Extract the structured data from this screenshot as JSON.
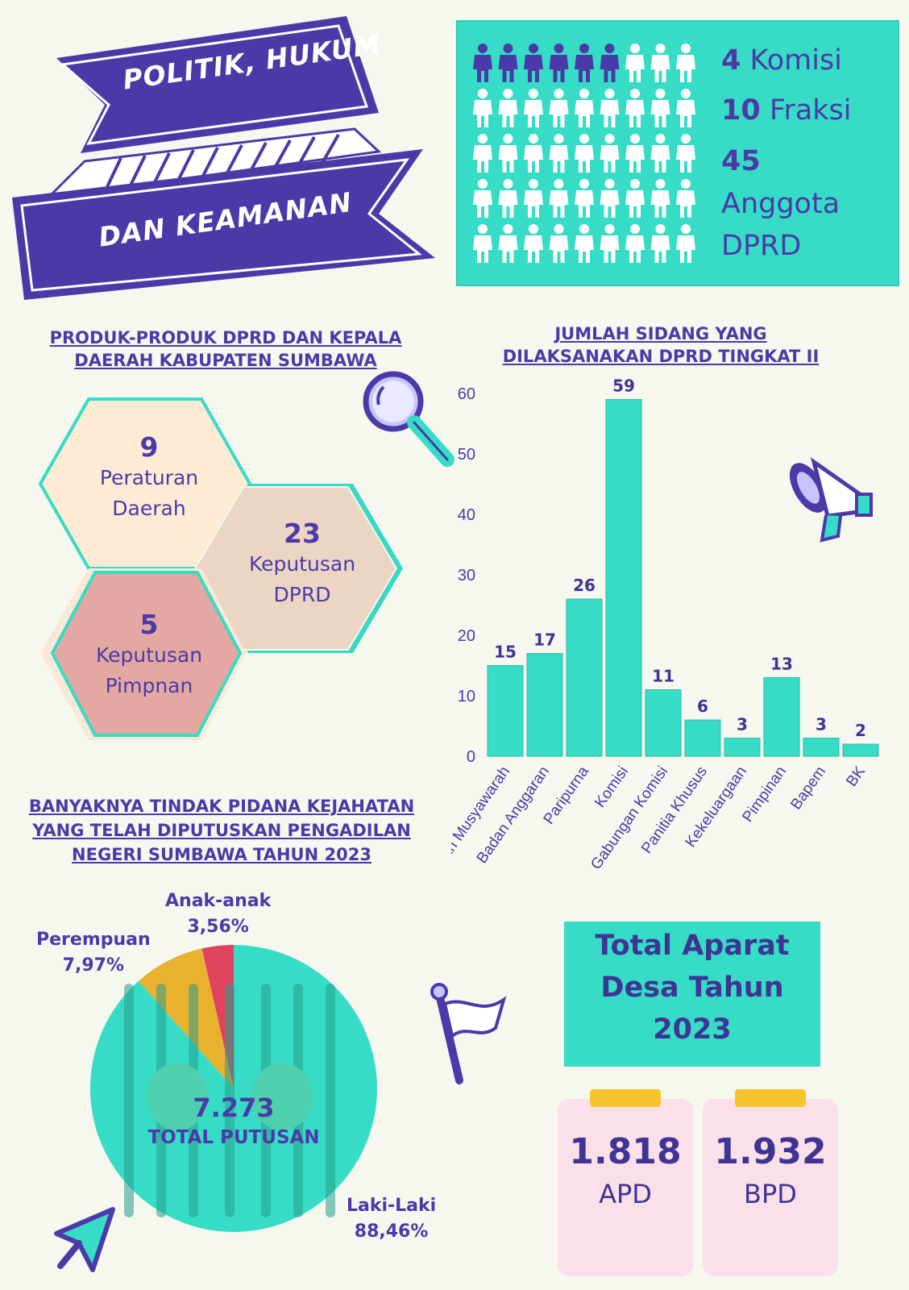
{
  "banner": {
    "line1": "POLITIK, HUKUM",
    "line2": "DAN KEAMANAN"
  },
  "dprd_box": {
    "komisi_num": "4",
    "komisi_label": "Komisi",
    "fraksi_num": "10",
    "fraksi_label": "Fraksi",
    "anggota_num": "45",
    "anggota_label1": "Anggota",
    "anggota_label2": "DPRD",
    "icon": "person-icon-grid"
  },
  "produk": {
    "title1": "PRODUK-PRODUK DPRD DAN KEPALA",
    "title2": "DAERAH KABUPATEN SUMBAWA",
    "items": [
      {
        "num": "9",
        "label1": "Peraturan",
        "label2": "Daerah"
      },
      {
        "num": "23",
        "label1": "Keputusan",
        "label2": "DPRD"
      },
      {
        "num": "5",
        "label1": "Keputusan",
        "label2": "Pimpnan"
      }
    ]
  },
  "sidang": {
    "title1": "JUMLAH SIDANG YANG",
    "title2": "DILAKSANAKAN DPRD TINGKAT II"
  },
  "chart_data": [
    {
      "type": "bar",
      "title": "JUMLAH SIDANG YANG DILAKSANAKAN DPRD TINGKAT II",
      "categories": [
        "Badan Musyawarah",
        "Badan Anggaran",
        "Paripurna",
        "Komisi",
        "Gabungan Komisi",
        "Panitia Khusus",
        "Kekeluargaan",
        "Pimpinan",
        "Bapem",
        "BK"
      ],
      "values": [
        15,
        17,
        26,
        59,
        11,
        6,
        3,
        13,
        3,
        2
      ],
      "ylim": [
        0,
        60
      ],
      "yticks": [
        "0",
        "10",
        "20",
        "30",
        "40",
        "50",
        "60"
      ],
      "color": "#36dcc6",
      "grid": false
    },
    {
      "type": "pie",
      "title": "BANYAKNYA TINDAK PIDANA KEJAHATAN YANG TELAH DIPUTUSKAN PENGADILAN NEGERI SUMBAWA TAHUN 2023",
      "slices": [
        {
          "name": "Laki-Laki",
          "value": 88.46,
          "label": "88,46%",
          "color": "#36dcc6"
        },
        {
          "name": "Perempuan",
          "value": 7.97,
          "label": "7,97%",
          "color": "#e9b22e"
        },
        {
          "name": "Anak-anak",
          "value": 3.56,
          "label": "3,56%",
          "color": "#e0435e"
        }
      ],
      "center_value": "7.273",
      "center_label": "TOTAL PUTUSAN"
    }
  ],
  "pidana": {
    "title1": "BANYAKNYA TINDAK PIDANA KEJAHATAN",
    "title2": "YANG TELAH DIPUTUSKAN PENGADILAN",
    "title3": "NEGERI SUMBAWA TAHUN 2023"
  },
  "aparat": {
    "title1": "Total Aparat",
    "title2": "Desa Tahun",
    "title3": "2023",
    "cards": [
      {
        "num": "1.818",
        "label": "APD"
      },
      {
        "num": "1.932",
        "label": "BPD"
      }
    ]
  },
  "colors": {
    "purple": "#4a3aa8",
    "teal": "#36dcc6",
    "yellow": "#e9b22e",
    "red": "#e0435e",
    "pink": "#fbe0ea"
  }
}
